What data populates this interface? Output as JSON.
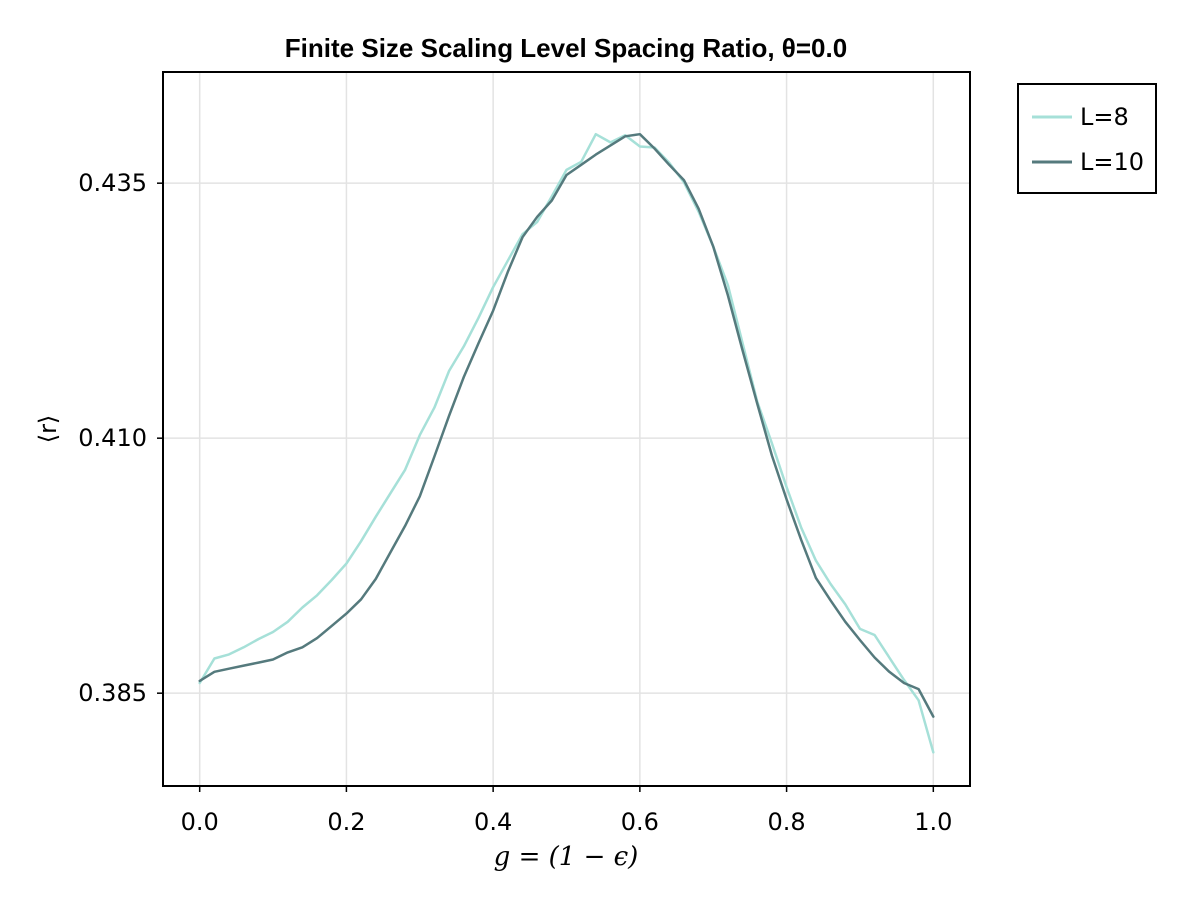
{
  "chart_data": {
    "type": "line",
    "title": "Finite Size Scaling Level Spacing Ratio, θ=0.0",
    "xlabel": "g = (1 − ϵ)",
    "ylabel": "⟨r⟩",
    "xlim": [
      -0.05,
      1.05
    ],
    "ylim": [
      0.3759,
      0.4459
    ],
    "xticks": [
      0.0,
      0.2,
      0.4,
      0.6,
      0.8,
      1.0
    ],
    "xtick_labels": [
      "0.0",
      "0.2",
      "0.4",
      "0.6",
      "0.8",
      "1.0"
    ],
    "yticks": [
      0.385,
      0.41,
      0.435
    ],
    "ytick_labels": [
      "0.385",
      "0.410",
      "0.435"
    ],
    "grid": true,
    "legend_position": "outside-top-right",
    "x": [
      0.0,
      0.02,
      0.04,
      0.06,
      0.08,
      0.1,
      0.12,
      0.14,
      0.16,
      0.18,
      0.2,
      0.22,
      0.24,
      0.26,
      0.28,
      0.3,
      0.32,
      0.34,
      0.36,
      0.38,
      0.4,
      0.42,
      0.44,
      0.46,
      0.48,
      0.5,
      0.52,
      0.54,
      0.56,
      0.58,
      0.6,
      0.62,
      0.64,
      0.66,
      0.68,
      0.7,
      0.72,
      0.74,
      0.76,
      0.78,
      0.8,
      0.82,
      0.84,
      0.86,
      0.88,
      0.9,
      0.92,
      0.94,
      0.96,
      0.98,
      1.0
    ],
    "series": [
      {
        "name": "L=8",
        "color": "#a6e0d8",
        "values": [
          0.386,
          0.3884,
          0.3888,
          0.3895,
          0.3903,
          0.391,
          0.392,
          0.3934,
          0.3946,
          0.3961,
          0.3977,
          0.3999,
          0.4023,
          0.4046,
          0.4069,
          0.4103,
          0.413,
          0.4166,
          0.419,
          0.4218,
          0.4248,
          0.4274,
          0.43,
          0.4312,
          0.4337,
          0.4363,
          0.4371,
          0.4398,
          0.439,
          0.4397,
          0.4386,
          0.4385,
          0.437,
          0.4351,
          0.4322,
          0.4288,
          0.425,
          0.4193,
          0.4136,
          0.4095,
          0.4052,
          0.4012,
          0.398,
          0.3957,
          0.3937,
          0.3913,
          0.3907,
          0.3885,
          0.3863,
          0.3843,
          0.3792
        ]
      },
      {
        "name": "L=10",
        "color": "#557a7d",
        "values": [
          0.3862,
          0.3871,
          0.3874,
          0.3877,
          0.388,
          0.3883,
          0.389,
          0.3895,
          0.3904,
          0.3916,
          0.3928,
          0.3942,
          0.3962,
          0.3988,
          0.4014,
          0.4043,
          0.4082,
          0.4122,
          0.416,
          0.4193,
          0.4225,
          0.4263,
          0.4297,
          0.4317,
          0.4333,
          0.4358,
          0.4368,
          0.4378,
          0.4387,
          0.4396,
          0.4398,
          0.4384,
          0.4368,
          0.4353,
          0.4325,
          0.4288,
          0.424,
          0.4186,
          0.4134,
          0.4083,
          0.404,
          0.4,
          0.3963,
          0.3941,
          0.392,
          0.3902,
          0.3885,
          0.3871,
          0.386,
          0.3854,
          0.3827
        ]
      }
    ]
  }
}
